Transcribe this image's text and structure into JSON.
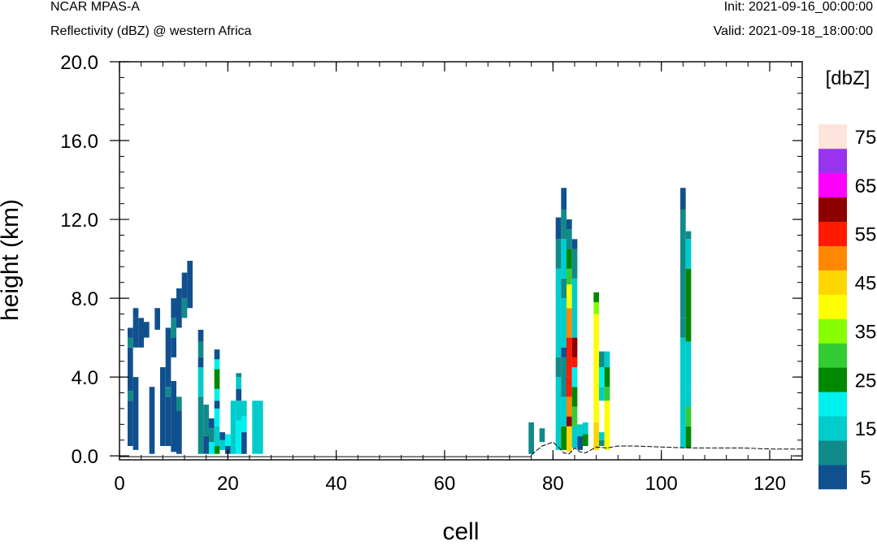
{
  "header": {
    "model": "NCAR MPAS-A",
    "field": "Reflectivity (dBZ) @ western Africa",
    "init": "Init: 2021-09-16_00:00:00",
    "valid": "Valid: 2021-09-18_18:00:00"
  },
  "chart_data": {
    "type": "heatmap",
    "xlabel": "cell",
    "ylabel": "height (km)",
    "xlim": [
      0,
      126
    ],
    "ylim": [
      -0.2,
      20.0
    ],
    "x_ticks": [
      "0",
      "20",
      "40",
      "60",
      "80",
      "100",
      "120"
    ],
    "x_tick_values": [
      0,
      20,
      40,
      60,
      80,
      100,
      120
    ],
    "y_ticks": [
      "0.0",
      "4.0",
      "8.0",
      "12.0",
      "16.0",
      "20.0"
    ],
    "y_tick_values": [
      0,
      4,
      8,
      12,
      16,
      20
    ],
    "colorbar": {
      "unit_label": "[dbZ]",
      "levels": [
        5,
        10,
        15,
        20,
        25,
        30,
        35,
        40,
        45,
        50,
        55,
        60,
        65,
        70,
        75
      ],
      "colors": [
        "#11508e",
        "#118a8a",
        "#00cccc",
        "#00f0f0",
        "#008800",
        "#33cc33",
        "#88ff00",
        "#ffff00",
        "#ffd700",
        "#ff8800",
        "#ff1a00",
        "#8e0000",
        "#ff00ff",
        "#9933ee",
        "#ffe4dc"
      ],
      "tick_labels": [
        "5",
        "15",
        "25",
        "35",
        "45",
        "55",
        "65",
        "75"
      ]
    },
    "terrain": [
      [
        76,
        0.05
      ],
      [
        78,
        0.5
      ],
      [
        80,
        0.7
      ],
      [
        81,
        0.45
      ],
      [
        82,
        0.15
      ],
      [
        83,
        0.1
      ],
      [
        84,
        0.4
      ],
      [
        85,
        0.2
      ],
      [
        86,
        0.15
      ],
      [
        87,
        0.3
      ],
      [
        88,
        0.45
      ],
      [
        90,
        0.4
      ],
      [
        92,
        0.5
      ],
      [
        95,
        0.5
      ],
      [
        100,
        0.45
      ],
      [
        105,
        0.4
      ],
      [
        110,
        0.4
      ],
      [
        115,
        0.4
      ],
      [
        120,
        0.35
      ],
      [
        126,
        0.35
      ]
    ],
    "columns": [
      {
        "x": 2,
        "segs": [
          [
            0.5,
            2.8,
            0
          ],
          [
            2.8,
            3.3,
            1
          ],
          [
            3.3,
            5.5,
            0
          ],
          [
            5.5,
            6.0,
            1
          ],
          [
            6.0,
            6.5,
            0
          ]
        ]
      },
      {
        "x": 3,
        "segs": [
          [
            0.3,
            4.0,
            0
          ],
          [
            5.5,
            7.0,
            0
          ],
          [
            7.0,
            7.5,
            0
          ]
        ]
      },
      {
        "x": 4,
        "segs": [
          [
            5.5,
            7.0,
            0
          ]
        ]
      },
      {
        "x": 5,
        "segs": [
          [
            6.0,
            6.8,
            0
          ]
        ]
      },
      {
        "x": 6,
        "segs": [
          [
            0.1,
            3.5,
            0
          ]
        ]
      },
      {
        "x": 7,
        "segs": [
          [
            6.4,
            7.5,
            0
          ]
        ]
      },
      {
        "x": 8,
        "segs": [
          [
            0.5,
            4.5,
            0
          ]
        ]
      },
      {
        "x": 9,
        "segs": [
          [
            0.5,
            3.0,
            0
          ],
          [
            3.0,
            3.5,
            1
          ],
          [
            3.5,
            6.5,
            0
          ]
        ]
      },
      {
        "x": 10,
        "segs": [
          [
            0.2,
            3.8,
            0
          ],
          [
            5.0,
            6.0,
            0
          ],
          [
            6.0,
            7.0,
            1
          ],
          [
            7.0,
            8.0,
            0
          ]
        ]
      },
      {
        "x": 11,
        "segs": [
          [
            0.1,
            2.3,
            0
          ],
          [
            2.3,
            3.0,
            1
          ],
          [
            6.5,
            8.5,
            0
          ]
        ]
      },
      {
        "x": 12,
        "segs": [
          [
            7.0,
            8.0,
            1
          ],
          [
            8.0,
            9.3,
            0
          ]
        ]
      },
      {
        "x": 13,
        "segs": [
          [
            7.5,
            9.9,
            0
          ]
        ]
      },
      {
        "x": 15,
        "segs": [
          [
            0.1,
            3.0,
            1
          ],
          [
            3.0,
            4.5,
            2
          ],
          [
            4.5,
            5.0,
            0
          ],
          [
            5.0,
            5.8,
            1
          ],
          [
            5.8,
            6.4,
            0
          ]
        ]
      },
      {
        "x": 16,
        "segs": [
          [
            0.1,
            1.0,
            0
          ],
          [
            1.0,
            2.6,
            1
          ]
        ]
      },
      {
        "x": 17,
        "segs": [
          [
            0.1,
            0.7,
            3
          ],
          [
            0.7,
            1.4,
            1
          ],
          [
            1.4,
            1.9,
            0
          ]
        ]
      },
      {
        "x": 18,
        "segs": [
          [
            0.1,
            0.5,
            4
          ],
          [
            0.5,
            1.5,
            2
          ],
          [
            1.5,
            2.4,
            3
          ],
          [
            2.4,
            2.8,
            0
          ],
          [
            2.8,
            3.4,
            3
          ],
          [
            3.4,
            4.4,
            4
          ],
          [
            4.4,
            4.9,
            3
          ],
          [
            4.9,
            5.4,
            0
          ]
        ]
      },
      {
        "x": 19,
        "segs": [
          [
            0.3,
            0.8,
            2
          ],
          [
            0.8,
            1.2,
            0
          ]
        ]
      },
      {
        "x": 20,
        "segs": [
          [
            0.1,
            0.5,
            0
          ],
          [
            0.5,
            1.1,
            3
          ]
        ]
      },
      {
        "x": 21,
        "segs": [
          [
            0.1,
            2.8,
            2
          ]
        ]
      },
      {
        "x": 22,
        "segs": [
          [
            0.1,
            1.8,
            3
          ],
          [
            1.8,
            2.8,
            2
          ],
          [
            2.8,
            3.4,
            0
          ],
          [
            3.4,
            4.0,
            2
          ],
          [
            4.0,
            4.2,
            1
          ]
        ]
      },
      {
        "x": 23,
        "segs": [
          [
            0.1,
            1.2,
            0
          ],
          [
            1.2,
            2.0,
            3
          ],
          [
            2.0,
            2.8,
            2
          ]
        ]
      },
      {
        "x": 25,
        "segs": [
          [
            0.1,
            2.8,
            2
          ]
        ]
      },
      {
        "x": 26,
        "segs": [
          [
            0.1,
            2.8,
            2
          ]
        ]
      },
      {
        "x": 76,
        "segs": [
          [
            0.1,
            1.7,
            1
          ]
        ]
      },
      {
        "x": 78,
        "segs": [
          [
            0.7,
            1.4,
            1
          ]
        ]
      },
      {
        "x": 81,
        "segs": [
          [
            0.3,
            4.0,
            2
          ],
          [
            4.0,
            5.0,
            1
          ],
          [
            5.0,
            9.5,
            2
          ],
          [
            9.5,
            11.0,
            1
          ],
          [
            11.0,
            12.1,
            0
          ]
        ]
      },
      {
        "x": 82,
        "segs": [
          [
            0.3,
            1.5,
            4
          ],
          [
            1.5,
            3.0,
            2
          ],
          [
            3.0,
            5.0,
            1
          ],
          [
            5.0,
            5.5,
            0
          ],
          [
            5.5,
            8.0,
            2
          ],
          [
            8.0,
            9.0,
            1
          ],
          [
            9.0,
            11.0,
            2
          ],
          [
            11.0,
            12.5,
            1
          ],
          [
            12.5,
            13.6,
            0
          ]
        ]
      },
      {
        "x": 83,
        "segs": [
          [
            0.2,
            1.5,
            8
          ],
          [
            1.5,
            2.0,
            11
          ],
          [
            2.0,
            3.0,
            9
          ],
          [
            3.0,
            4.0,
            10
          ],
          [
            4.0,
            6.0,
            10
          ],
          [
            6.0,
            7.5,
            9
          ],
          [
            7.5,
            8.7,
            7
          ],
          [
            8.7,
            9.5,
            5
          ],
          [
            9.5,
            10.5,
            4
          ],
          [
            10.5,
            11.5,
            1
          ],
          [
            11.5,
            12.0,
            0
          ]
        ]
      },
      {
        "x": 84,
        "segs": [
          [
            0.4,
            1.5,
            2
          ],
          [
            1.5,
            2.5,
            5
          ],
          [
            2.5,
            3.5,
            4
          ],
          [
            3.5,
            4.5,
            3
          ],
          [
            4.5,
            5.0,
            10
          ],
          [
            5.0,
            6.0,
            11
          ],
          [
            6.0,
            9.0,
            2
          ],
          [
            9.0,
            10.5,
            1
          ],
          [
            10.5,
            11.0,
            0
          ]
        ]
      },
      {
        "x": 85,
        "segs": [
          [
            0.3,
            1.0,
            0
          ],
          [
            1.0,
            1.6,
            2
          ]
        ]
      },
      {
        "x": 86,
        "segs": [
          [
            0.5,
            1.1,
            4
          ],
          [
            1.1,
            1.7,
            2
          ]
        ]
      },
      {
        "x": 88,
        "segs": [
          [
            0.3,
            1.7,
            8
          ],
          [
            1.7,
            7.2,
            7
          ],
          [
            7.2,
            7.8,
            6
          ],
          [
            7.8,
            8.3,
            4
          ]
        ]
      },
      {
        "x": 89,
        "segs": [
          [
            0.5,
            0.8,
            1
          ],
          [
            0.8,
            1.2,
            2
          ],
          [
            2.8,
            3.5,
            2
          ],
          [
            3.5,
            4.5,
            3
          ],
          [
            4.5,
            5.3,
            1
          ]
        ]
      },
      {
        "x": 90,
        "segs": [
          [
            0.3,
            2.8,
            7
          ],
          [
            2.8,
            3.5,
            5
          ],
          [
            3.5,
            4.5,
            4
          ],
          [
            4.5,
            5.3,
            2
          ]
        ]
      },
      {
        "x": 104,
        "segs": [
          [
            0.4,
            6.0,
            2
          ],
          [
            6.0,
            7.0,
            1
          ],
          [
            7.0,
            12.5,
            1
          ],
          [
            12.5,
            13.6,
            0
          ]
        ]
      },
      {
        "x": 105,
        "segs": [
          [
            0.4,
            1.5,
            4
          ],
          [
            1.5,
            2.5,
            5
          ],
          [
            2.5,
            3.5,
            2
          ],
          [
            3.5,
            5.8,
            2
          ],
          [
            5.8,
            9.5,
            4
          ],
          [
            9.5,
            11.0,
            2
          ],
          [
            11.0,
            11.4,
            1
          ]
        ]
      }
    ]
  }
}
